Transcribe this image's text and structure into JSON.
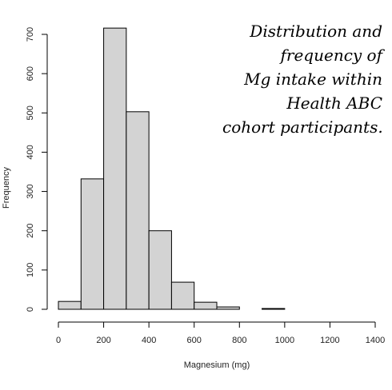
{
  "chart_data": {
    "type": "histogram",
    "title": "",
    "xlabel": "Magnesium (mg)",
    "ylabel": "Frequency",
    "bin_width": 100,
    "bins": [
      {
        "start": 0,
        "end": 100,
        "count": 20
      },
      {
        "start": 100,
        "end": 200,
        "count": 332
      },
      {
        "start": 200,
        "end": 300,
        "count": 716
      },
      {
        "start": 300,
        "end": 400,
        "count": 503
      },
      {
        "start": 400,
        "end": 500,
        "count": 200
      },
      {
        "start": 500,
        "end": 600,
        "count": 69
      },
      {
        "start": 600,
        "end": 700,
        "count": 18
      },
      {
        "start": 700,
        "end": 800,
        "count": 6
      },
      {
        "start": 800,
        "end": 900,
        "count": 0
      },
      {
        "start": 900,
        "end": 1000,
        "count": 2
      },
      {
        "start": 1000,
        "end": 1100,
        "count": 0
      },
      {
        "start": 1100,
        "end": 1200,
        "count": 0
      },
      {
        "start": 1200,
        "end": 1300,
        "count": 0
      },
      {
        "start": 1300,
        "end": 1400,
        "count": 0
      }
    ],
    "xlim": [
      0,
      1400
    ],
    "ylim": [
      0,
      700
    ],
    "x_ticks": [
      0,
      200,
      400,
      600,
      800,
      1000,
      1200,
      1400
    ],
    "y_ticks": [
      0,
      100,
      200,
      300,
      400,
      500,
      600,
      700
    ],
    "bar_color": "#d3d3d3",
    "bar_edge_color": "#000000",
    "grid": false,
    "annotation_lines": [
      "Distribution and",
      "frequency of",
      "Mg intake within",
      "Health ABC",
      "cohort participants."
    ]
  }
}
